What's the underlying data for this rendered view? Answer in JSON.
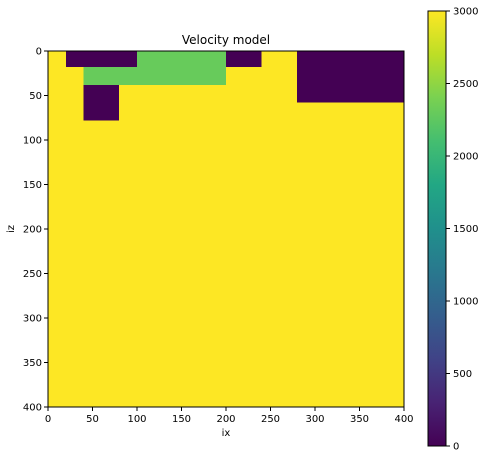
{
  "chart_data": {
    "type": "heatmap",
    "title": "Velocity model",
    "xlabel": "ix",
    "ylabel": "iz",
    "xlim": [
      0,
      400
    ],
    "ylim": [
      400,
      0
    ],
    "x_ticks": [
      0,
      50,
      100,
      150,
      200,
      250,
      300,
      350,
      400
    ],
    "y_ticks": [
      0,
      50,
      100,
      150,
      200,
      250,
      300,
      350,
      400
    ],
    "colormap": "viridis",
    "color_range": [
      0,
      3000
    ],
    "colorbar_ticks": [
      0,
      500,
      1000,
      1500,
      2000,
      2500,
      3000
    ],
    "background_value": 3000,
    "regions": [
      {
        "x0": 20,
        "x1": 100,
        "z0": 0,
        "z1": 18,
        "value": 0
      },
      {
        "x0": 100,
        "x1": 200,
        "z0": 0,
        "z1": 18,
        "value": 2300
      },
      {
        "x0": 40,
        "x1": 200,
        "z0": 18,
        "z1": 38,
        "value": 2300
      },
      {
        "x0": 40,
        "x1": 80,
        "z0": 38,
        "z1": 78,
        "value": 0
      },
      {
        "x0": 200,
        "x1": 240,
        "z0": 0,
        "z1": 18,
        "value": 0
      },
      {
        "x0": 280,
        "x1": 400,
        "z0": 0,
        "z1": 58,
        "value": 0
      }
    ]
  }
}
